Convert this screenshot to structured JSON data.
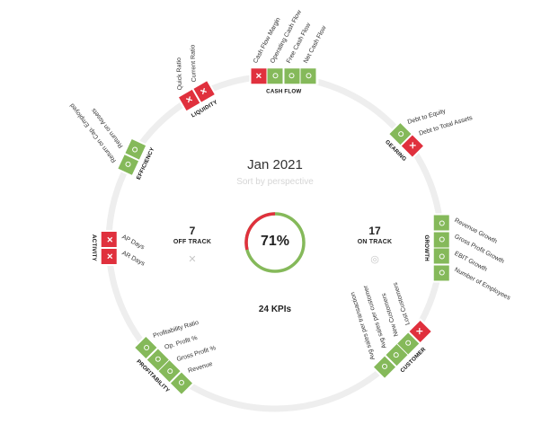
{
  "header": {
    "period": "Jan 2021",
    "sort_hint": "Sort by perspective"
  },
  "summary": {
    "off_track_count": "7",
    "off_track_label": "OFF TRACK",
    "on_track_count": "17",
    "on_track_label": "ON TRACK",
    "percent_label": "71%",
    "percent_value": 71,
    "total_label": "24 KPIs"
  },
  "colors": {
    "on_track": "#85b95a",
    "off_track": "#e0303d",
    "ring": "#eeeeee"
  },
  "perspectives": [
    {
      "id": "cash-flow",
      "name": "CASH FLOW",
      "kpis": [
        {
          "label": "Cash Flow Margin",
          "status": "off"
        },
        {
          "label": "Operating Cash Flow",
          "status": "on"
        },
        {
          "label": "Free Cash Flow",
          "status": "on"
        },
        {
          "label": "Net Cash Flow",
          "status": "on"
        }
      ]
    },
    {
      "id": "gearing",
      "name": "GEARING",
      "kpis": [
        {
          "label": "Debt to Equity",
          "status": "on"
        },
        {
          "label": "Debt to Total Assets",
          "status": "off"
        }
      ]
    },
    {
      "id": "growth",
      "name": "GROWTH",
      "kpis": [
        {
          "label": "Revenue Growth",
          "status": "on"
        },
        {
          "label": "Gross Profit Growth",
          "status": "on"
        },
        {
          "label": "EBIT Growth",
          "status": "on"
        },
        {
          "label": "Number of Employees",
          "status": "on"
        }
      ]
    },
    {
      "id": "customer",
      "name": "CUSTOMER",
      "kpis": [
        {
          "label": "Avg sales per transaction",
          "status": "on"
        },
        {
          "label": "Avg sales per customer",
          "status": "on"
        },
        {
          "label": "New Customers",
          "status": "on"
        },
        {
          "label": "Lost Customers",
          "status": "off"
        }
      ]
    },
    {
      "id": "profitability",
      "name": "PROFITABILITY",
      "kpis": [
        {
          "label": "Profitability Ratio",
          "status": "on"
        },
        {
          "label": "Op. Profit %",
          "status": "on"
        },
        {
          "label": "Gross Profit %",
          "status": "on"
        },
        {
          "label": "Revenue",
          "status": "on"
        }
      ]
    },
    {
      "id": "activity",
      "name": "ACTIVITY",
      "kpis": [
        {
          "label": "AP Days",
          "status": "off"
        },
        {
          "label": "AR Days",
          "status": "off"
        }
      ]
    },
    {
      "id": "efficiency",
      "name": "EFFICIENCY",
      "kpis": [
        {
          "label": "Return on Cap. Employed",
          "status": "on"
        },
        {
          "label": "Return on Assets",
          "status": "on"
        }
      ]
    },
    {
      "id": "liquidity",
      "name": "LIQUIDITY",
      "kpis": [
        {
          "label": "Quick Ratio",
          "status": "off"
        },
        {
          "label": "Current Ratio",
          "status": "off"
        }
      ]
    }
  ]
}
